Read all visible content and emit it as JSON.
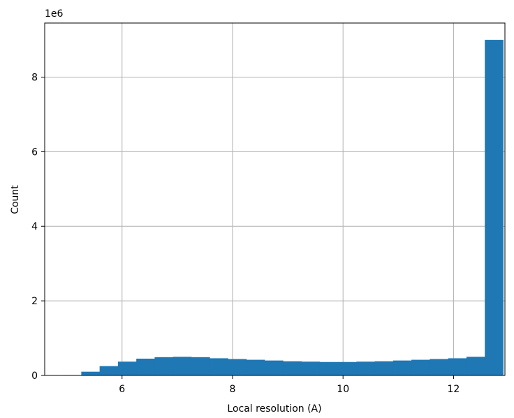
{
  "chart_data": {
    "type": "bar",
    "title": "",
    "xlabel": "Local resolution (A)",
    "ylabel": "Count",
    "y_offset_label": "1e6",
    "xlim": [
      4.6,
      12.93
    ],
    "ylim": [
      0,
      9.45
    ],
    "x_ticks": [
      6,
      8,
      10,
      12
    ],
    "y_ticks": [
      0,
      2,
      4,
      6,
      8
    ],
    "grid": true,
    "legend": "none",
    "bar_color": "#1f77b4",
    "grid_color": "#b0b0b0",
    "bin_edges": [
      4.93,
      5.262,
      5.594,
      5.926,
      6.258,
      6.59,
      6.922,
      7.254,
      7.586,
      7.918,
      8.25,
      8.582,
      8.914,
      9.246,
      9.578,
      9.91,
      10.242,
      10.574,
      10.906,
      11.238,
      11.57,
      11.902,
      12.234,
      12.566,
      12.898
    ],
    "values": [
      0.01,
      0.1,
      0.25,
      0.37,
      0.45,
      0.49,
      0.5,
      0.49,
      0.46,
      0.44,
      0.42,
      0.4,
      0.38,
      0.37,
      0.36,
      0.36,
      0.37,
      0.38,
      0.4,
      0.42,
      0.44,
      0.46,
      0.5,
      9.0
    ]
  }
}
